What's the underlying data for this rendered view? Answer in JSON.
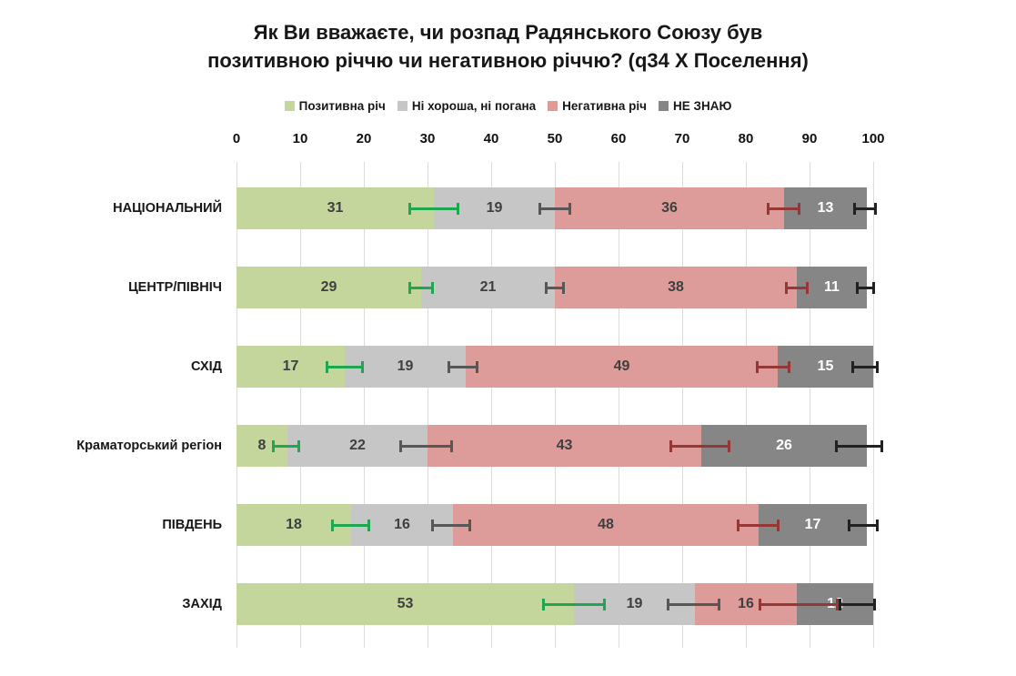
{
  "chart_data": {
    "type": "bar",
    "subtype": "horizontal-stacked-100-with-error-bars",
    "title": "Як Ви вважаєте, чи розпад Радянського Союзу був\nпозитивною річчю чи негативною річчю? (q34 X Поселення)",
    "legend_position": "top",
    "grid": true,
    "xlabel": "",
    "ylabel": "",
    "xlim": [
      0,
      100
    ],
    "x_ticks": [
      0,
      10,
      20,
      30,
      40,
      50,
      60,
      70,
      80,
      90,
      100
    ],
    "categories": [
      "НАЦІОНАЛЬНИЙ",
      "ЦЕНТР/ПІВНІЧ",
      "СХІД",
      "Краматорський регіон",
      "ПІВДЕНЬ",
      "ЗАХІД"
    ],
    "series": [
      {
        "name": "Позитивна річ",
        "color": "#c4d69b",
        "values": [
          31,
          29,
          17,
          8,
          18,
          53
        ],
        "error_bars": [
          [
            27,
            35
          ],
          [
            27,
            31
          ],
          [
            14,
            20
          ],
          [
            5.5,
            10
          ],
          [
            14.8,
            21
          ],
          [
            48,
            58
          ]
        ]
      },
      {
        "name": "Ні хороша, ні погана",
        "color": "#c6c6c6",
        "values": [
          19,
          21,
          19,
          22,
          16,
          19
        ],
        "error_bars": [
          [
            47.4,
            52.6
          ],
          [
            48.4,
            51.6
          ],
          [
            33.2,
            38
          ],
          [
            25.6,
            34
          ],
          [
            30.5,
            36.8
          ],
          [
            67.6,
            76
          ]
        ]
      },
      {
        "name": "Негативна річ",
        "color": "#dd9b9a",
        "values": [
          36,
          38,
          49,
          43,
          48,
          16
        ],
        "error_bars": [
          [
            83.3,
            88.6
          ],
          [
            86.2,
            89.8
          ],
          [
            81.5,
            87
          ],
          [
            68,
            77.5
          ],
          [
            78.5,
            85.3
          ],
          [
            82,
            94.5
          ]
        ]
      },
      {
        "name": "НЕ ЗНАЮ",
        "color": "#868686",
        "values": [
          13,
          11,
          15,
          26,
          17,
          12
        ],
        "error_bars": [
          [
            96.8,
            100.6
          ],
          [
            97.3,
            100.3
          ],
          [
            96.5,
            100.8
          ],
          [
            94,
            101.5
          ],
          [
            96,
            100.8
          ],
          [
            94.5,
            100.4
          ]
        ]
      }
    ],
    "error_bar_colors": [
      "#1ea750",
      "#575757",
      "#953735",
      "#212121"
    ]
  },
  "style": {
    "background": "#ffffff",
    "grid_color": "#dcdcdc",
    "title_color": "#171717",
    "axis_label_color": "#111111",
    "category_label_color": "#171717",
    "value_label_color": "#3f3f3f",
    "value_label_color_on_dark": "#ffffff"
  }
}
